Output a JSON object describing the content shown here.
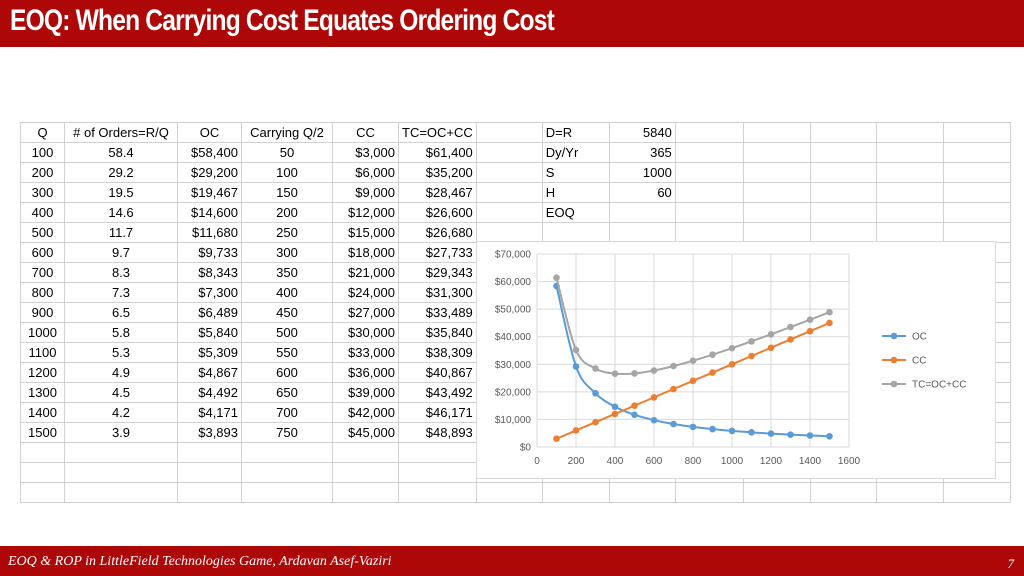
{
  "title": "EOQ: When Carrying Cost Equates Ordering Cost",
  "footer": {
    "text": "EOQ & ROP in LittleField Technologies Game, Ardavan Asef-Vaziri",
    "page": "7"
  },
  "table": {
    "headers": [
      "Q",
      "# of Orders=R/Q",
      "OC",
      "Carrying Q/2",
      "CC",
      "TC=OC+CC"
    ],
    "rows": [
      [
        "100",
        "58.4",
        "$58,400",
        "50",
        "$3,000",
        "$61,400"
      ],
      [
        "200",
        "29.2",
        "$29,200",
        "100",
        "$6,000",
        "$35,200"
      ],
      [
        "300",
        "19.5",
        "$19,467",
        "150",
        "$9,000",
        "$28,467"
      ],
      [
        "400",
        "14.6",
        "$14,600",
        "200",
        "$12,000",
        "$26,600"
      ],
      [
        "500",
        "11.7",
        "$11,680",
        "250",
        "$15,000",
        "$26,680"
      ],
      [
        "600",
        "9.7",
        "$9,733",
        "300",
        "$18,000",
        "$27,733"
      ],
      [
        "700",
        "8.3",
        "$8,343",
        "350",
        "$21,000",
        "$29,343"
      ],
      [
        "800",
        "7.3",
        "$7,300",
        "400",
        "$24,000",
        "$31,300"
      ],
      [
        "900",
        "6.5",
        "$6,489",
        "450",
        "$27,000",
        "$33,489"
      ],
      [
        "1000",
        "5.8",
        "$5,840",
        "500",
        "$30,000",
        "$35,840"
      ],
      [
        "1100",
        "5.3",
        "$5,309",
        "550",
        "$33,000",
        "$38,309"
      ],
      [
        "1200",
        "4.9",
        "$4,867",
        "600",
        "$36,000",
        "$40,867"
      ],
      [
        "1300",
        "4.5",
        "$4,492",
        "650",
        "$39,000",
        "$43,492"
      ],
      [
        "1400",
        "4.2",
        "$4,171",
        "700",
        "$42,000",
        "$46,171"
      ],
      [
        "1500",
        "3.9",
        "$3,893",
        "750",
        "$45,000",
        "$48,893"
      ]
    ]
  },
  "params": [
    {
      "label": "D=R",
      "value": "5840"
    },
    {
      "label": "Dy/Yr",
      "value": "365"
    },
    {
      "label": "S",
      "value": "1000"
    },
    {
      "label": "H",
      "value": "60"
    },
    {
      "label": "EOQ",
      "value": ""
    }
  ],
  "colors": {
    "header_bg": "#ad0707",
    "oc": "#5b9bd5",
    "cc": "#ed7d31",
    "tc": "#a5a5a5"
  },
  "chart_data": {
    "type": "scatter",
    "x": [
      100,
      200,
      300,
      400,
      500,
      600,
      700,
      800,
      900,
      1000,
      1100,
      1200,
      1300,
      1400,
      1500
    ],
    "series": [
      {
        "name": "OC",
        "values": [
          58400,
          29200,
          19467,
          14600,
          11680,
          9733,
          8343,
          7300,
          6489,
          5840,
          5309,
          4867,
          4492,
          4171,
          3893
        ]
      },
      {
        "name": "CC",
        "values": [
          3000,
          6000,
          9000,
          12000,
          15000,
          18000,
          21000,
          24000,
          27000,
          30000,
          33000,
          36000,
          39000,
          42000,
          45000
        ]
      },
      {
        "name": "TC=OC+CC",
        "values": [
          61400,
          35200,
          28467,
          26600,
          26680,
          27733,
          29343,
          31300,
          33489,
          35840,
          38309,
          40867,
          43492,
          46171,
          48893
        ]
      }
    ],
    "xlim": [
      0,
      1600
    ],
    "ylim": [
      0,
      70000
    ],
    "x_ticks": [
      "0",
      "200",
      "400",
      "600",
      "800",
      "1000",
      "1200",
      "1400",
      "1600"
    ],
    "y_ticks": [
      "$0",
      "$10,000",
      "$20,000",
      "$30,000",
      "$40,000",
      "$50,000",
      "$60,000",
      "$70,000"
    ],
    "grid": true,
    "legend": "right",
    "smooth_lines": true
  }
}
